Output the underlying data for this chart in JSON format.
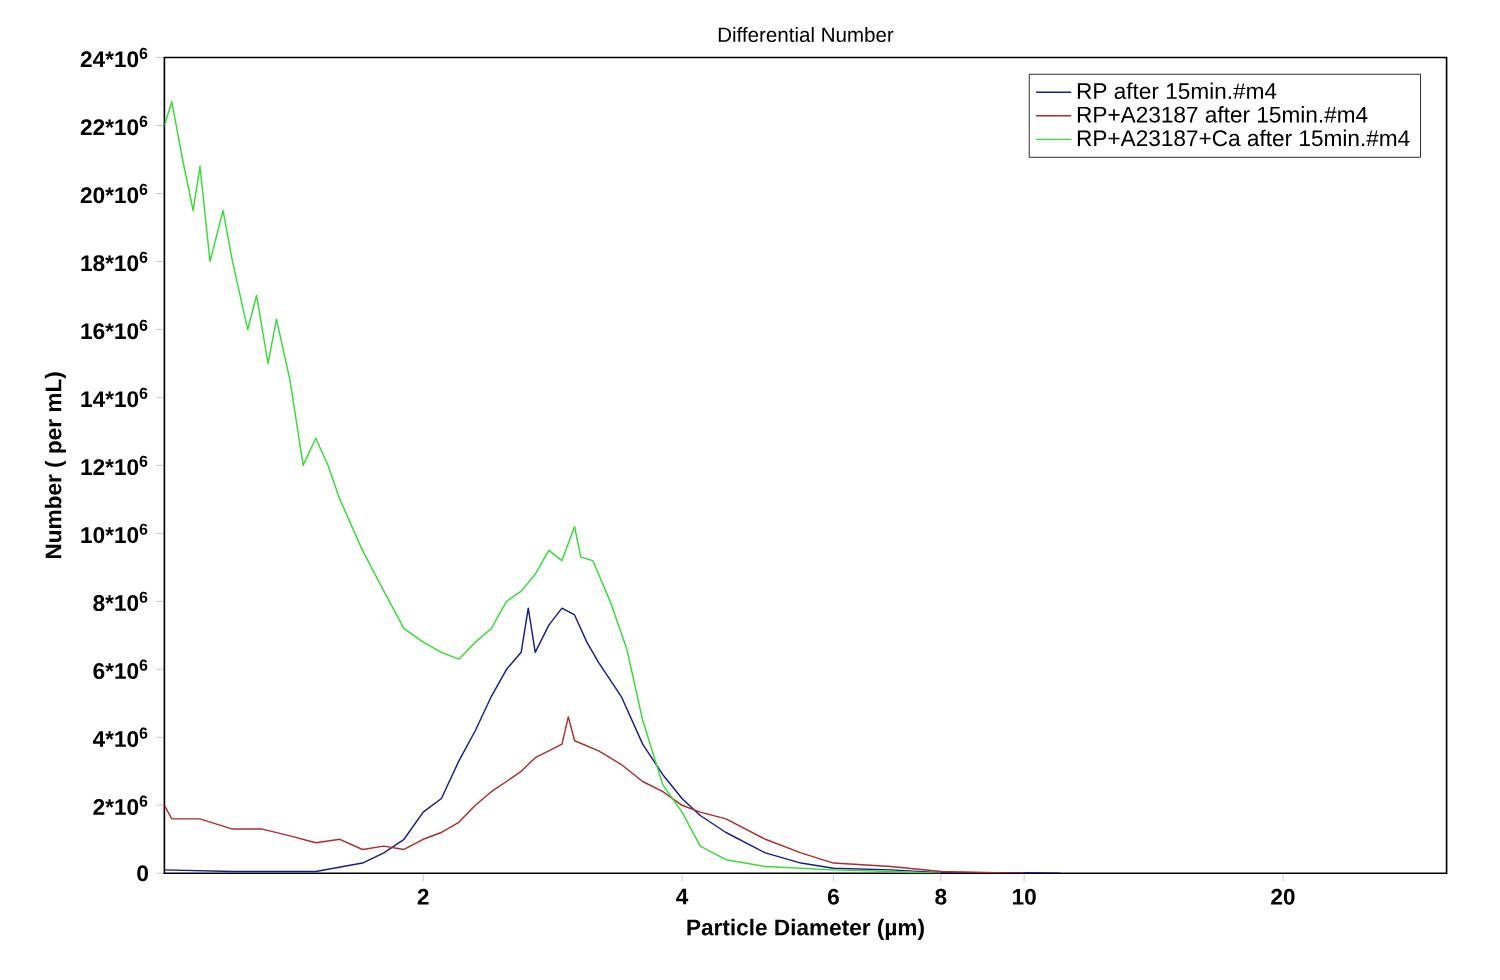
{
  "chart_data": {
    "type": "line",
    "title": "Differential Number",
    "xlabel": "Particle Diameter (µm)",
    "ylabel": "Number ( per mL)",
    "log": "x",
    "grid": false,
    "legend": "top right",
    "marker": "none",
    "line_style": "solid",
    "xlim": [
      1,
      31
    ],
    "xticks": [
      2,
      4,
      6,
      8,
      10,
      20
    ],
    "ylim": [
      0,
      24000000
    ],
    "yticks": [
      0,
      {
        "value": 2000000,
        "label": "2*10$^{6}$"
      },
      {
        "value": 4000000,
        "label": "4*10$^{6}$"
      },
      {
        "value": 6000000,
        "label": "6*10$^{6}$"
      },
      {
        "value": 8000000,
        "label": "8*10$^{6}$"
      },
      {
        "value": 10000000,
        "label": "10*10$^{6}$"
      },
      {
        "value": 12000000,
        "label": "12*10$^{6}$"
      },
      {
        "value": 14000000,
        "label": "14*10$^{6}$"
      },
      {
        "value": 16000000,
        "label": "16*10$^{6}$"
      },
      {
        "value": 18000000,
        "label": "18*10$^{6}$"
      },
      {
        "value": 20000000,
        "label": "20*10$^{6}$"
      },
      {
        "value": 22000000,
        "label": "22*10$^{6}$"
      },
      {
        "value": 24000000,
        "label": "24*10$^{6}$"
      }
    ],
    "series": [
      {
        "name": "RP after 15min.#m4",
        "color": "#1a1a8c",
        "x": [
          1.0,
          1.2,
          1.5,
          1.7,
          1.8,
          1.9,
          2.0,
          2.1,
          2.2,
          2.3,
          2.4,
          2.5,
          2.6,
          2.65,
          2.7,
          2.8,
          2.9,
          3.0,
          3.1,
          3.2,
          3.4,
          3.6,
          3.8,
          4.0,
          4.2,
          4.5,
          5.0,
          5.5,
          6.0,
          7.0,
          8.0,
          10,
          11
        ],
        "values": [
          100000,
          50000,
          50000,
          300000,
          600000,
          1000000,
          1800000,
          2200000,
          3300000,
          4200000,
          5200000,
          6000000,
          6500000,
          7800000,
          6500000,
          7300000,
          7800000,
          7600000,
          6800000,
          6200000,
          5200000,
          3800000,
          2900000,
          2200000,
          1700000,
          1200000,
          600000,
          300000,
          150000,
          100000,
          20000,
          20000,
          0
        ]
      },
      {
        "name": "RP+A23187 after 15min.#m4",
        "color": "#b22a2a",
        "x": [
          1.0,
          1.02,
          1.1,
          1.2,
          1.3,
          1.4,
          1.5,
          1.6,
          1.7,
          1.8,
          1.9,
          2.0,
          2.1,
          2.2,
          2.3,
          2.4,
          2.5,
          2.6,
          2.7,
          2.8,
          2.9,
          2.95,
          3.0,
          3.2,
          3.4,
          3.6,
          3.8,
          4.0,
          4.2,
          4.5,
          5.0,
          5.5,
          6.0,
          7.0,
          8.0,
          10
        ],
        "values": [
          2000000,
          1600000,
          1600000,
          1300000,
          1300000,
          1100000,
          900000,
          1000000,
          700000,
          800000,
          700000,
          1000000,
          1200000,
          1500000,
          2000000,
          2400000,
          2700000,
          3000000,
          3400000,
          3600000,
          3800000,
          4600000,
          3900000,
          3600000,
          3200000,
          2700000,
          2400000,
          2000000,
          1800000,
          1600000,
          1000000,
          600000,
          300000,
          200000,
          50000,
          0
        ]
      },
      {
        "name": "RP+A23187+Ca after 15min.#m4",
        "color": "#33dd33",
        "x": [
          1.0,
          1.02,
          1.05,
          1.08,
          1.1,
          1.13,
          1.17,
          1.2,
          1.25,
          1.28,
          1.32,
          1.35,
          1.4,
          1.45,
          1.5,
          1.55,
          1.6,
          1.7,
          1.8,
          1.9,
          2.0,
          2.1,
          2.2,
          2.3,
          2.4,
          2.5,
          2.6,
          2.7,
          2.8,
          2.9,
          3.0,
          3.05,
          3.15,
          3.3,
          3.45,
          3.6,
          3.8,
          4.0,
          4.2,
          4.5,
          5.0,
          6.0,
          7.0,
          8.0
        ],
        "values": [
          22000000,
          22700000,
          21000000,
          19500000,
          20800000,
          18000000,
          19500000,
          18000000,
          16000000,
          17000000,
          15000000,
          16300000,
          14500000,
          12000000,
          12800000,
          12000000,
          11000000,
          9500000,
          8300000,
          7200000,
          6800000,
          6500000,
          6300000,
          6800000,
          7200000,
          8000000,
          8300000,
          8800000,
          9500000,
          9200000,
          10200000,
          9300000,
          9200000,
          8000000,
          6600000,
          4500000,
          2600000,
          1800000,
          800000,
          400000,
          200000,
          100000,
          50000,
          0
        ]
      }
    ]
  }
}
